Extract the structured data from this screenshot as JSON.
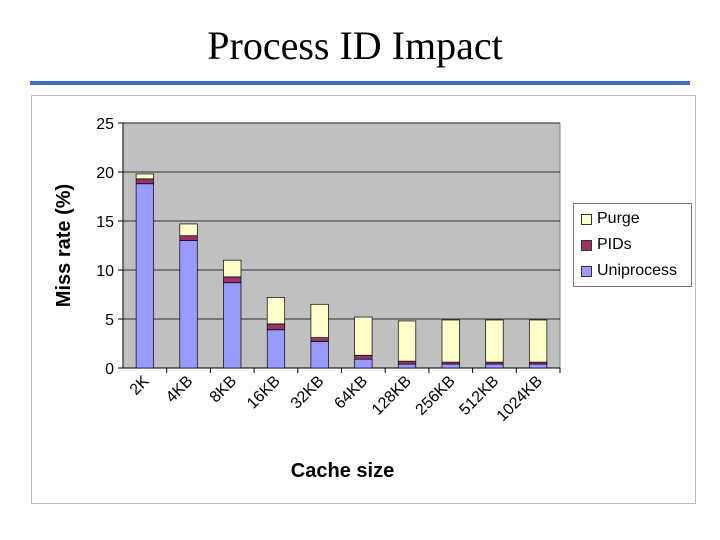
{
  "slide": {
    "title": "Process ID Impact"
  },
  "chart_data": {
    "type": "bar",
    "stacked": true,
    "categories": [
      "2K",
      "4KB",
      "8KB",
      "16KB",
      "32KB",
      "64KB",
      "128KB",
      "256KB",
      "512KB",
      "1024KB"
    ],
    "series": [
      {
        "name": "Uniprocess",
        "color": "#9999ff",
        "values": [
          18.8,
          13.0,
          8.7,
          3.9,
          2.7,
          0.9,
          0.4,
          0.4,
          0.4,
          0.4
        ]
      },
      {
        "name": "PIDs",
        "color": "#993366",
        "values": [
          0.5,
          0.5,
          0.6,
          0.6,
          0.4,
          0.4,
          0.3,
          0.2,
          0.2,
          0.2
        ]
      },
      {
        "name": "Purge",
        "color": "#ffffcc",
        "values": [
          0.5,
          1.2,
          1.7,
          2.7,
          3.4,
          3.9,
          4.1,
          4.3,
          4.3,
          4.3
        ]
      }
    ],
    "xlabel": "Cache size",
    "ylabel": "Miss rate (%)",
    "ylim": [
      0,
      25
    ],
    "yticks": [
      "0",
      "5",
      "10",
      "15",
      "20",
      "25"
    ],
    "grid": true,
    "plot_background": "#c0c0c0",
    "legend": {
      "position": "right",
      "entries": [
        "Purge",
        "PIDs",
        "Uniprocess"
      ]
    }
  }
}
